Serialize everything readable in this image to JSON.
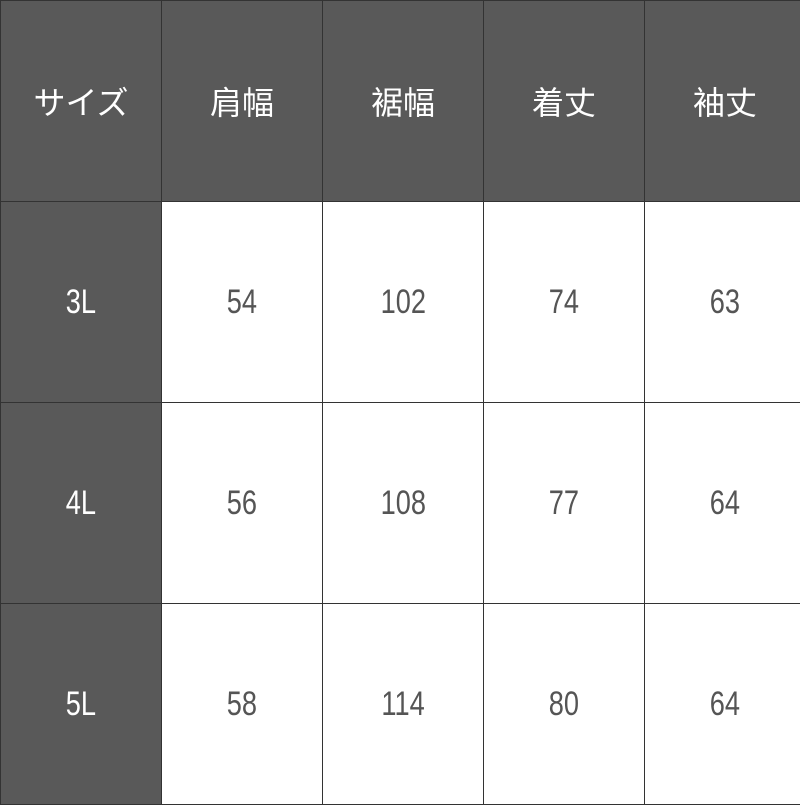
{
  "colors": {
    "header_bg": "#595959",
    "header_text": "#ffffff",
    "cell_bg": "#ffffff",
    "cell_text": "#555555",
    "border": "#333333"
  },
  "table": {
    "headers": [
      "サイズ",
      "肩幅",
      "裾幅",
      "着丈",
      "袖丈"
    ],
    "rows": [
      [
        "3L",
        "54",
        "102",
        "74",
        "63"
      ],
      [
        "4L",
        "56",
        "108",
        "77",
        "64"
      ],
      [
        "5L",
        "58",
        "114",
        "80",
        "64"
      ]
    ]
  }
}
